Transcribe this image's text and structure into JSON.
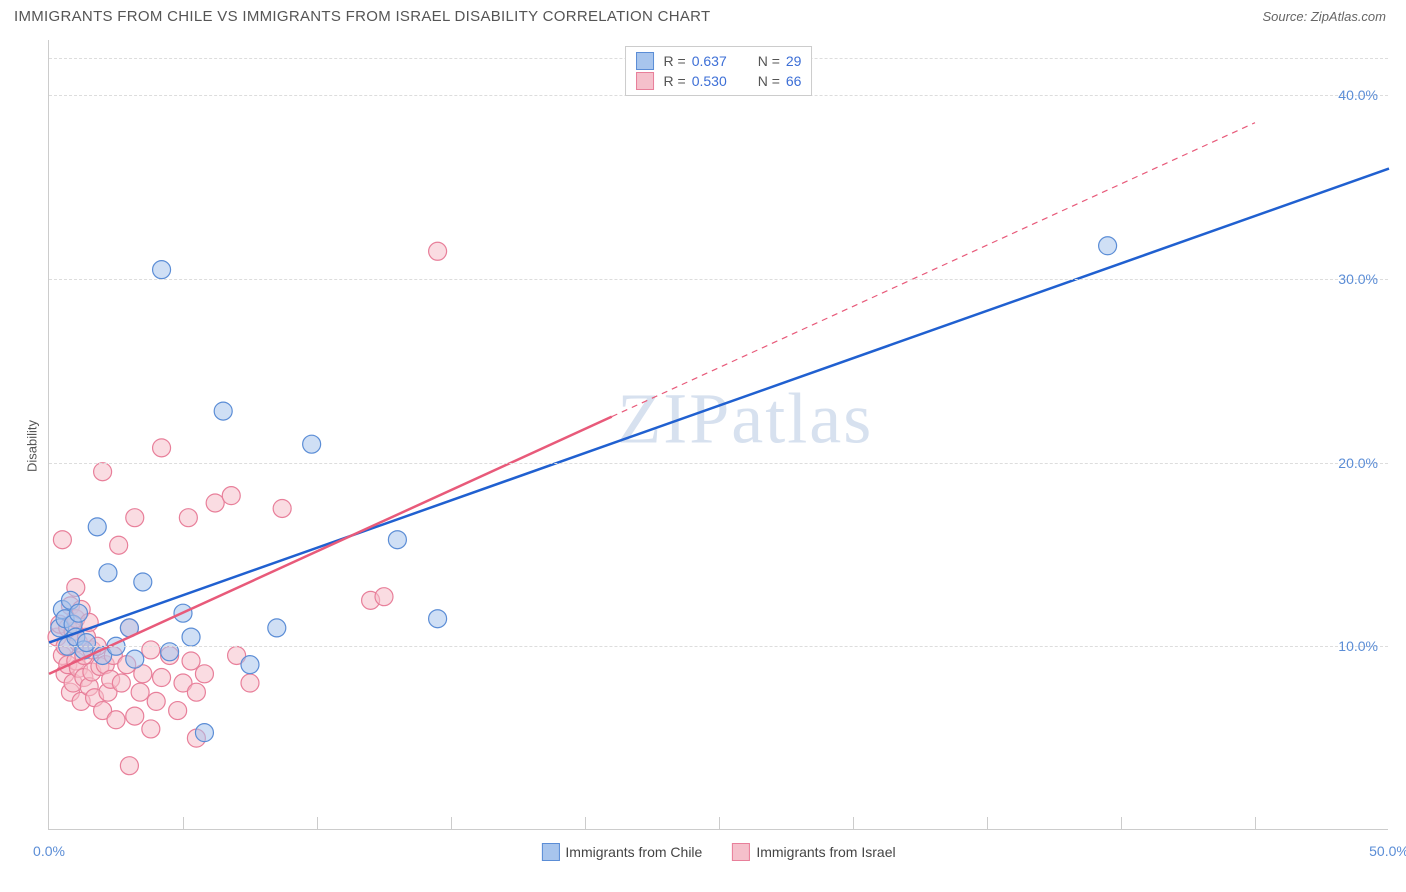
{
  "header": {
    "title": "IMMIGRANTS FROM CHILE VS IMMIGRANTS FROM ISRAEL DISABILITY CORRELATION CHART",
    "source_prefix": "Source: ",
    "source": "ZipAtlas.com"
  },
  "chart": {
    "type": "scatter",
    "ylabel": "Disability",
    "xlim": [
      0,
      50
    ],
    "ylim": [
      0,
      43
    ],
    "xticks": [
      0,
      10,
      20,
      30,
      40,
      50
    ],
    "xtick_labels": [
      "0.0%",
      "",
      "",
      "",
      "",
      "50.0%"
    ],
    "x_minor_ticks": [
      5,
      10,
      15,
      20,
      25,
      30,
      35,
      40,
      45
    ],
    "yticks": [
      10,
      20,
      30,
      40
    ],
    "ytick_labels": [
      "10.0%",
      "20.0%",
      "30.0%",
      "40.0%"
    ],
    "grid_color": "#dddddd",
    "axis_color": "#cccccc",
    "background": "#ffffff",
    "marker_radius": 9,
    "marker_opacity": 0.55,
    "marker_stroke_width": 1.2,
    "series": [
      {
        "name": "Immigrants from Chile",
        "color_fill": "#a8c5ed",
        "color_stroke": "#5b8dd6",
        "R": "0.637",
        "N": "29",
        "trend": {
          "x1": 0,
          "y1": 10.2,
          "x2": 50,
          "y2": 36,
          "dash": "none",
          "stroke": "#2060d0",
          "width": 2.5,
          "extend_dash": false
        },
        "points": [
          [
            0.4,
            11.0
          ],
          [
            0.5,
            12.0
          ],
          [
            0.6,
            11.5
          ],
          [
            0.7,
            10.0
          ],
          [
            0.8,
            12.5
          ],
          [
            0.9,
            11.2
          ],
          [
            1.0,
            10.5
          ],
          [
            1.1,
            11.8
          ],
          [
            1.3,
            9.8
          ],
          [
            1.4,
            10.2
          ],
          [
            1.8,
            16.5
          ],
          [
            2.0,
            9.5
          ],
          [
            2.2,
            14.0
          ],
          [
            2.5,
            10.0
          ],
          [
            3.0,
            11.0
          ],
          [
            3.2,
            9.3
          ],
          [
            3.5,
            13.5
          ],
          [
            4.2,
            30.5
          ],
          [
            4.5,
            9.7
          ],
          [
            5.0,
            11.8
          ],
          [
            5.3,
            10.5
          ],
          [
            5.8,
            5.3
          ],
          [
            6.5,
            22.8
          ],
          [
            7.5,
            9.0
          ],
          [
            8.5,
            11.0
          ],
          [
            9.8,
            21.0
          ],
          [
            13.0,
            15.8
          ],
          [
            14.5,
            11.5
          ],
          [
            39.5,
            31.8
          ]
        ]
      },
      {
        "name": "Immigrants from Israel",
        "color_fill": "#f5c0cb",
        "color_stroke": "#e87f9a",
        "R": "0.530",
        "N": "66",
        "trend": {
          "x1": 0,
          "y1": 8.5,
          "x2": 21,
          "y2": 22.5,
          "dash": "none",
          "stroke": "#e85a7a",
          "width": 2.5,
          "extend_dash": true,
          "ex2": 45,
          "ey2": 38.5
        },
        "points": [
          [
            0.3,
            10.5
          ],
          [
            0.4,
            11.2
          ],
          [
            0.5,
            9.5
          ],
          [
            0.5,
            15.8
          ],
          [
            0.6,
            10.0
          ],
          [
            0.6,
            8.5
          ],
          [
            0.7,
            11.0
          ],
          [
            0.7,
            9.0
          ],
          [
            0.8,
            12.2
          ],
          [
            0.8,
            7.5
          ],
          [
            0.9,
            10.8
          ],
          [
            0.9,
            8.0
          ],
          [
            1.0,
            11.5
          ],
          [
            1.0,
            9.2
          ],
          [
            1.0,
            13.2
          ],
          [
            1.1,
            8.8
          ],
          [
            1.1,
            10.2
          ],
          [
            1.2,
            7.0
          ],
          [
            1.2,
            12.0
          ],
          [
            1.3,
            9.5
          ],
          [
            1.3,
            8.3
          ],
          [
            1.4,
            10.5
          ],
          [
            1.5,
            7.8
          ],
          [
            1.5,
            11.3
          ],
          [
            1.6,
            8.6
          ],
          [
            1.6,
            9.8
          ],
          [
            1.7,
            7.2
          ],
          [
            1.8,
            10.0
          ],
          [
            1.9,
            8.9
          ],
          [
            2.0,
            19.5
          ],
          [
            2.0,
            6.5
          ],
          [
            2.1,
            9.0
          ],
          [
            2.2,
            7.5
          ],
          [
            2.3,
            8.2
          ],
          [
            2.4,
            9.5
          ],
          [
            2.5,
            6.0
          ],
          [
            2.7,
            8.0
          ],
          [
            2.9,
            9.0
          ],
          [
            3.0,
            11.0
          ],
          [
            3.2,
            6.2
          ],
          [
            3.4,
            7.5
          ],
          [
            3.5,
            8.5
          ],
          [
            3.8,
            9.8
          ],
          [
            3.2,
            17.0
          ],
          [
            4.0,
            7.0
          ],
          [
            4.2,
            8.3
          ],
          [
            4.5,
            9.5
          ],
          [
            4.2,
            20.8
          ],
          [
            4.8,
            6.5
          ],
          [
            5.0,
            8.0
          ],
          [
            5.3,
            9.2
          ],
          [
            5.5,
            7.5
          ],
          [
            5.5,
            5.0
          ],
          [
            5.2,
            17.0
          ],
          [
            5.8,
            8.5
          ],
          [
            6.2,
            17.8
          ],
          [
            6.8,
            18.2
          ],
          [
            7.0,
            9.5
          ],
          [
            7.5,
            8.0
          ],
          [
            8.7,
            17.5
          ],
          [
            3.0,
            3.5
          ],
          [
            3.8,
            5.5
          ],
          [
            12.0,
            12.5
          ],
          [
            12.5,
            12.7
          ],
          [
            14.5,
            31.5
          ],
          [
            2.6,
            15.5
          ]
        ]
      }
    ],
    "watermark": "ZIPatlas",
    "legend_bottom": [
      {
        "label": "Immigrants from Chile",
        "fill": "#a8c5ed",
        "stroke": "#5b8dd6"
      },
      {
        "label": "Immigrants from Israel",
        "fill": "#f5c0cb",
        "stroke": "#e87f9a"
      }
    ]
  }
}
